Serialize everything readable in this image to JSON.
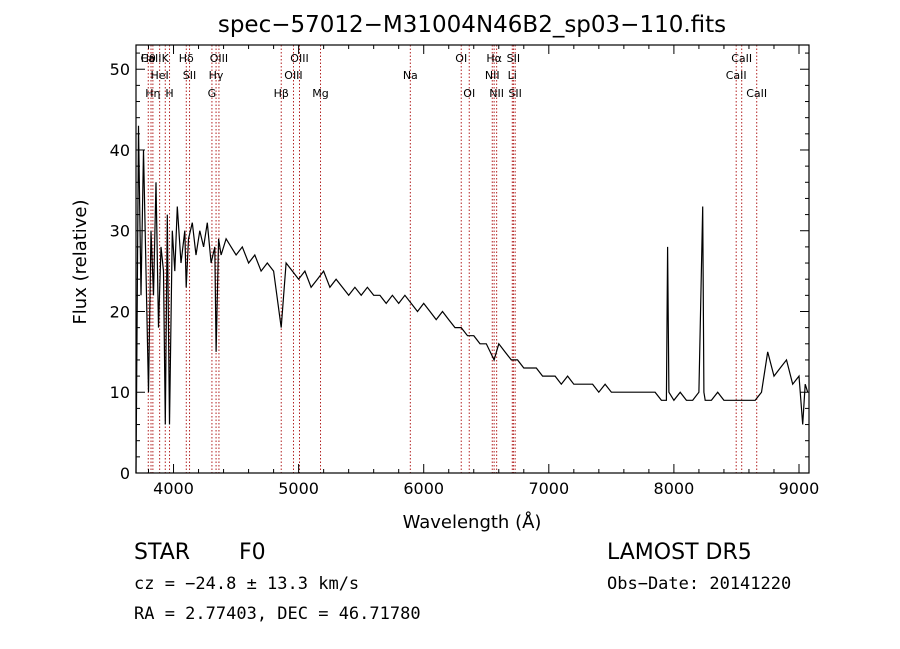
{
  "chart_data": {
    "type": "line",
    "title": "spec−57012−M31004N46B2_sp03−110.fits",
    "xlabel": "Wavelength (Å)",
    "ylabel": "Flux (relative)",
    "xlim": [
      3700,
      9080
    ],
    "ylim": [
      0,
      53
    ],
    "xticks": [
      4000,
      5000,
      6000,
      7000,
      8000,
      9000
    ],
    "yticks": [
      0,
      10,
      20,
      30,
      40,
      50
    ],
    "line_color": "#000000",
    "marker_color": "#b22222",
    "series": [
      {
        "x": [
          3700,
          3720,
          3740,
          3760,
          3780,
          3800,
          3820,
          3840,
          3860,
          3880,
          3900,
          3920,
          3934,
          3950,
          3968,
          3990,
          4010,
          4030,
          4060,
          4090,
          4101,
          4120,
          4150,
          4180,
          4210,
          4240,
          4270,
          4300,
          4330,
          4340,
          4360,
          4380,
          4420,
          4460,
          4500,
          4550,
          4600,
          4650,
          4700,
          4750,
          4800,
          4861,
          4900,
          4950,
          5000,
          5050,
          5100,
          5150,
          5200,
          5250,
          5300,
          5350,
          5400,
          5450,
          5500,
          5550,
          5600,
          5650,
          5700,
          5750,
          5800,
          5850,
          5900,
          5950,
          6000,
          6050,
          6100,
          6150,
          6200,
          6250,
          6300,
          6350,
          6400,
          6450,
          6500,
          6563,
          6600,
          6650,
          6700,
          6750,
          6800,
          6850,
          6900,
          6950,
          7000,
          7050,
          7100,
          7150,
          7200,
          7250,
          7300,
          7350,
          7400,
          7450,
          7500,
          7550,
          7600,
          7650,
          7700,
          7750,
          7800,
          7850,
          7900,
          7940,
          7950,
          7960,
          8000,
          8050,
          8100,
          8150,
          8200,
          8230,
          8240,
          8250,
          8300,
          8350,
          8400,
          8450,
          8500,
          8550,
          8600,
          8650,
          8700,
          8750,
          8800,
          8850,
          8900,
          8950,
          9000,
          9030,
          9050,
          9070
        ],
        "y": [
          0,
          43,
          22,
          40,
          25,
          10,
          30,
          22,
          36,
          18,
          28,
          25,
          6,
          32,
          6,
          30,
          25,
          33,
          26,
          30,
          23,
          29,
          31,
          27,
          30,
          28,
          31,
          26,
          28,
          15,
          29,
          27,
          29,
          28,
          27,
          28,
          26,
          27,
          25,
          26,
          25,
          18,
          26,
          25,
          24,
          25,
          23,
          24,
          25,
          23,
          24,
          23,
          22,
          23,
          22,
          23,
          22,
          22,
          21,
          22,
          21,
          22,
          21,
          20,
          21,
          20,
          19,
          20,
          19,
          18,
          18,
          17,
          17,
          16,
          16,
          14,
          16,
          15,
          14,
          14,
          13,
          13,
          13,
          12,
          12,
          12,
          11,
          12,
          11,
          11,
          11,
          11,
          10,
          11,
          10,
          10,
          10,
          10,
          10,
          10,
          10,
          10,
          9,
          9,
          28,
          10,
          9,
          10,
          9,
          9,
          10,
          33,
          10,
          9,
          9,
          10,
          9,
          9,
          9,
          9,
          9,
          9,
          10,
          15,
          12,
          13,
          14,
          11,
          12,
          6,
          11,
          10
        ]
      }
    ],
    "line_markers": [
      {
        "wl": 3798,
        "label": "Hθ",
        "row": 0
      },
      {
        "wl": 3820,
        "label": "CaII",
        "row": 0
      },
      {
        "wl": 3835,
        "label": "Hη",
        "row": 2
      },
      {
        "wl": 3889,
        "label": "HeI",
        "row": 1
      },
      {
        "wl": 3934,
        "label": "K",
        "row": 0
      },
      {
        "wl": 3968,
        "label": "H",
        "row": 2
      },
      {
        "wl": 4102,
        "label": "Hδ",
        "row": 0
      },
      {
        "wl": 4128,
        "label": "SII",
        "row": 1
      },
      {
        "wl": 4307,
        "label": "G",
        "row": 2
      },
      {
        "wl": 4340,
        "label": "Hγ",
        "row": 1
      },
      {
        "wl": 4363,
        "label": "OIII",
        "row": 0
      },
      {
        "wl": 4861,
        "label": "Hβ",
        "row": 2
      },
      {
        "wl": 4959,
        "label": "OIII",
        "row": 1
      },
      {
        "wl": 5007,
        "label": "OIII",
        "row": 0
      },
      {
        "wl": 5175,
        "label": "Mg",
        "row": 2
      },
      {
        "wl": 5893,
        "label": "Na",
        "row": 1
      },
      {
        "wl": 6300,
        "label": "OI",
        "row": 0
      },
      {
        "wl": 6364,
        "label": "OI",
        "row": 2
      },
      {
        "wl": 6548,
        "label": "NII",
        "row": 1
      },
      {
        "wl": 6563,
        "label": "Hα",
        "row": 0
      },
      {
        "wl": 6583,
        "label": "NII",
        "row": 2
      },
      {
        "wl": 6708,
        "label": "Li",
        "row": 1
      },
      {
        "wl": 6717,
        "label": "SII",
        "row": 0
      },
      {
        "wl": 6731,
        "label": "SII",
        "row": 2
      },
      {
        "wl": 8498,
        "label": "CaII",
        "row": 1
      },
      {
        "wl": 8542,
        "label": "CaII",
        "row": 0
      },
      {
        "wl": 8662,
        "label": "CaII",
        "row": 2
      }
    ]
  },
  "footer": {
    "object_class": "STAR",
    "subclass": "F0",
    "survey": "LAMOST DR5",
    "velocity": "cz = −24.8 ± 13.3 km/s",
    "obs_date": "Obs−Date: 20141220",
    "coords": "RA =   2.77403, DEC =  46.71780"
  }
}
